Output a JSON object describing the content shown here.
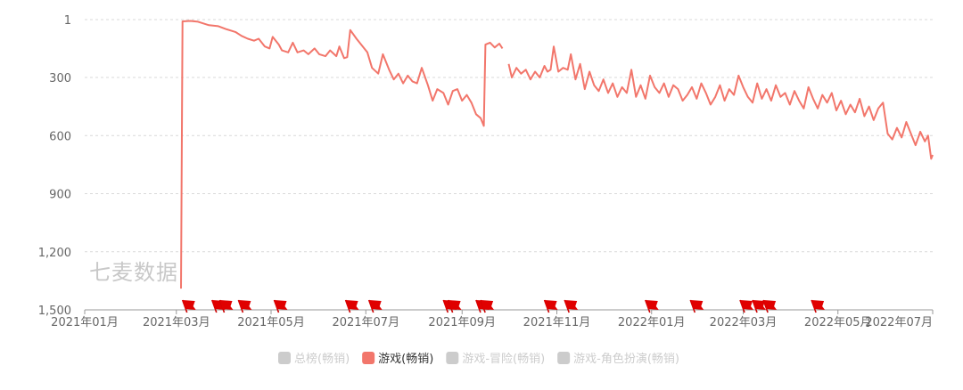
{
  "watermark": "七麦数据",
  "chart_data": {
    "type": "line",
    "title": "",
    "xlabel": "",
    "ylabel": "",
    "y_inverted": true,
    "ylim": [
      1,
      1500
    ],
    "y_ticks": [
      "1",
      "300",
      "600",
      "900",
      "1,200",
      "1,500"
    ],
    "y_tick_values": [
      1,
      300,
      600,
      900,
      1200,
      1500
    ],
    "x_ticks": [
      "2021年01月",
      "2021年03月",
      "2021年05月",
      "2021年07月",
      "2021年09月",
      "2021年11月",
      "2022年01月",
      "2022年03月",
      "2022年05月",
      "2022年07月"
    ],
    "x_tick_dates": [
      "2021-01-01",
      "2021-03-01",
      "2021-05-01",
      "2021-07-01",
      "2021-09-01",
      "2021-11-01",
      "2022-01-01",
      "2022-03-01",
      "2022-05-01",
      "2022-07-01"
    ],
    "grid": true,
    "legend_position": "bottom",
    "legend": [
      {
        "name": "总榜(畅销)",
        "active": false,
        "color": "#cccccc"
      },
      {
        "name": "游戏(畅销)",
        "active": true,
        "color": "#f2766b"
      },
      {
        "name": "游戏-冒险(畅销)",
        "active": false,
        "color": "#cccccc"
      },
      {
        "name": "游戏-角色扮演(畅销)",
        "active": false,
        "color": "#cccccc"
      }
    ],
    "series": [
      {
        "name": "游戏(畅销)",
        "color": "#f2766b",
        "segments": [
          [
            [
              "2021-03-04",
              1390
            ],
            [
              "2021-03-05",
              10
            ],
            [
              "2021-03-10",
              8
            ],
            [
              "2021-03-15",
              12
            ],
            [
              "2021-03-22",
              30
            ],
            [
              "2021-03-28",
              35
            ],
            [
              "2021-04-02",
              50
            ],
            [
              "2021-04-08",
              65
            ],
            [
              "2021-04-12",
              85
            ],
            [
              "2021-04-16",
              100
            ],
            [
              "2021-04-20",
              110
            ],
            [
              "2021-04-23",
              100
            ],
            [
              "2021-04-27",
              140
            ],
            [
              "2021-04-30",
              150
            ],
            [
              "2021-05-02",
              90
            ],
            [
              "2021-05-06",
              130
            ],
            [
              "2021-05-08",
              160
            ],
            [
              "2021-05-12",
              170
            ],
            [
              "2021-05-15",
              120
            ],
            [
              "2021-05-18",
              170
            ],
            [
              "2021-05-22",
              160
            ],
            [
              "2021-05-25",
              180
            ],
            [
              "2021-05-29",
              150
            ],
            [
              "2021-06-01",
              180
            ],
            [
              "2021-06-05",
              190
            ],
            [
              "2021-06-08",
              160
            ],
            [
              "2021-06-12",
              190
            ],
            [
              "2021-06-14",
              140
            ],
            [
              "2021-06-17",
              200
            ],
            [
              "2021-06-19",
              195
            ],
            [
              "2021-06-21",
              55
            ],
            [
              "2021-06-25",
              100
            ],
            [
              "2021-06-29",
              140
            ],
            [
              "2021-07-02",
              170
            ],
            [
              "2021-07-05",
              250
            ],
            [
              "2021-07-09",
              280
            ],
            [
              "2021-07-12",
              180
            ],
            [
              "2021-07-16",
              260
            ],
            [
              "2021-07-19",
              310
            ],
            [
              "2021-07-22",
              280
            ],
            [
              "2021-07-25",
              330
            ],
            [
              "2021-07-28",
              290
            ],
            [
              "2021-07-31",
              320
            ],
            [
              "2021-08-03",
              330
            ],
            [
              "2021-08-06",
              250
            ],
            [
              "2021-08-10",
              340
            ],
            [
              "2021-08-13",
              420
            ],
            [
              "2021-08-16",
              360
            ],
            [
              "2021-08-20",
              380
            ],
            [
              "2021-08-23",
              440
            ],
            [
              "2021-08-26",
              370
            ],
            [
              "2021-08-29",
              360
            ],
            [
              "2021-09-01",
              420
            ],
            [
              "2021-09-04",
              390
            ],
            [
              "2021-09-07",
              430
            ],
            [
              "2021-09-10",
              490
            ],
            [
              "2021-09-13",
              510
            ],
            [
              "2021-09-15",
              550
            ],
            [
              "2021-09-16",
              130
            ],
            [
              "2021-09-19",
              120
            ],
            [
              "2021-09-22",
              145
            ],
            [
              "2021-09-25",
              125
            ],
            [
              "2021-09-27",
              150
            ]
          ],
          [
            [
              "2021-10-01",
              230
            ],
            [
              "2021-10-03",
              300
            ],
            [
              "2021-10-06",
              250
            ],
            [
              "2021-10-09",
              280
            ],
            [
              "2021-10-12",
              260
            ],
            [
              "2021-10-15",
              310
            ],
            [
              "2021-10-18",
              270
            ],
            [
              "2021-10-21",
              300
            ],
            [
              "2021-10-24",
              240
            ],
            [
              "2021-10-26",
              270
            ],
            [
              "2021-10-28",
              260
            ],
            [
              "2021-10-30",
              140
            ],
            [
              "2021-11-02",
              270
            ],
            [
              "2021-11-05",
              250
            ],
            [
              "2021-11-08",
              260
            ],
            [
              "2021-11-10",
              180
            ],
            [
              "2021-11-13",
              310
            ],
            [
              "2021-11-16",
              230
            ],
            [
              "2021-11-19",
              360
            ],
            [
              "2021-11-22",
              270
            ],
            [
              "2021-11-25",
              340
            ],
            [
              "2021-11-28",
              370
            ],
            [
              "2021-12-01",
              310
            ],
            [
              "2021-12-04",
              380
            ],
            [
              "2021-12-07",
              330
            ],
            [
              "2021-12-10",
              400
            ],
            [
              "2021-12-13",
              350
            ],
            [
              "2021-12-16",
              380
            ],
            [
              "2021-12-19",
              260
            ],
            [
              "2021-12-22",
              400
            ],
            [
              "2021-12-25",
              340
            ],
            [
              "2021-12-28",
              410
            ],
            [
              "2021-12-31",
              290
            ],
            [
              "2022-01-03",
              350
            ],
            [
              "2022-01-06",
              380
            ],
            [
              "2022-01-09",
              330
            ],
            [
              "2022-01-12",
              400
            ],
            [
              "2022-01-15",
              340
            ],
            [
              "2022-01-18",
              360
            ],
            [
              "2022-01-21",
              420
            ],
            [
              "2022-01-24",
              390
            ],
            [
              "2022-01-27",
              350
            ],
            [
              "2022-01-30",
              410
            ],
            [
              "2022-02-02",
              330
            ],
            [
              "2022-02-05",
              380
            ],
            [
              "2022-02-08",
              440
            ],
            [
              "2022-02-11",
              400
            ],
            [
              "2022-02-14",
              340
            ],
            [
              "2022-02-17",
              420
            ],
            [
              "2022-02-20",
              360
            ],
            [
              "2022-02-23",
              390
            ],
            [
              "2022-02-26",
              290
            ],
            [
              "2022-03-01",
              350
            ],
            [
              "2022-03-04",
              400
            ],
            [
              "2022-03-07",
              430
            ],
            [
              "2022-03-10",
              330
            ],
            [
              "2022-03-13",
              410
            ],
            [
              "2022-03-16",
              360
            ],
            [
              "2022-03-19",
              420
            ],
            [
              "2022-03-22",
              340
            ],
            [
              "2022-03-25",
              400
            ],
            [
              "2022-03-28",
              380
            ],
            [
              "2022-03-31",
              440
            ],
            [
              "2022-04-03",
              370
            ],
            [
              "2022-04-06",
              420
            ],
            [
              "2022-04-09",
              460
            ],
            [
              "2022-04-12",
              350
            ],
            [
              "2022-04-15",
              410
            ],
            [
              "2022-04-18",
              460
            ],
            [
              "2022-04-21",
              390
            ],
            [
              "2022-04-24",
              430
            ],
            [
              "2022-04-27",
              380
            ],
            [
              "2022-04-30",
              470
            ],
            [
              "2022-05-03",
              420
            ],
            [
              "2022-05-06",
              490
            ],
            [
              "2022-05-09",
              440
            ],
            [
              "2022-05-12",
              480
            ],
            [
              "2022-05-15",
              410
            ],
            [
              "2022-05-18",
              500
            ],
            [
              "2022-05-21",
              450
            ],
            [
              "2022-05-24",
              520
            ],
            [
              "2022-05-27",
              460
            ],
            [
              "2022-05-30",
              430
            ],
            [
              "2022-06-02",
              590
            ],
            [
              "2022-06-05",
              620
            ],
            [
              "2022-06-08",
              560
            ],
            [
              "2022-06-11",
              610
            ],
            [
              "2022-06-14",
              530
            ],
            [
              "2022-06-17",
              590
            ],
            [
              "2022-06-20",
              650
            ],
            [
              "2022-06-23",
              580
            ],
            [
              "2022-06-26",
              630
            ],
            [
              "2022-06-28",
              600
            ],
            [
              "2022-06-30",
              720
            ],
            [
              "2022-07-01",
              700
            ]
          ]
        ]
      }
    ],
    "event_marker_dates": [
      "2021-03-05",
      "2021-03-24",
      "2021-03-29",
      "2021-04-10",
      "2021-05-03",
      "2021-06-18",
      "2021-07-03",
      "2021-08-20",
      "2021-08-23",
      "2021-09-10",
      "2021-09-13",
      "2021-10-24",
      "2021-11-06",
      "2021-12-28",
      "2022-01-26",
      "2022-02-27",
      "2022-03-07",
      "2022-03-14",
      "2022-04-14"
    ]
  }
}
